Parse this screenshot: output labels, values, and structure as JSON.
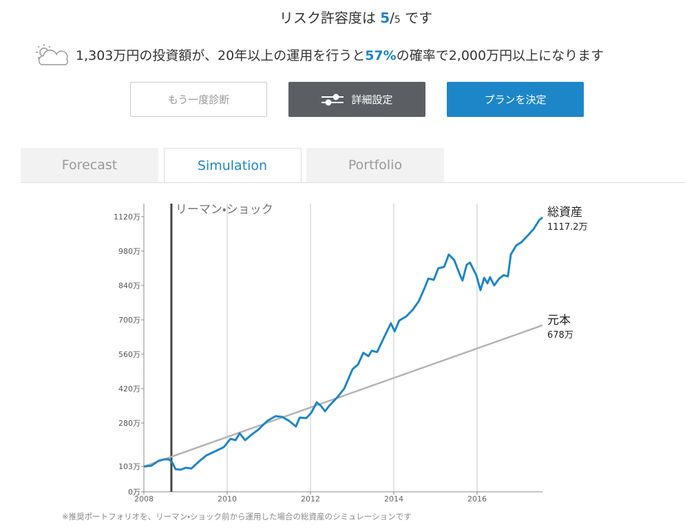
{
  "header": {
    "risk_prefix": "リスク許容度は",
    "risk_value": "5",
    "risk_separator": "/",
    "risk_max": "5",
    "risk_suffix": "です"
  },
  "forecast": {
    "prefix": "1,303万円の投資額が、20年以上の運用を行うと",
    "probability": "57%",
    "suffix": "の確率で2,000万円以上になります"
  },
  "buttons": [
    "もう一度診断",
    "詳細設定",
    "プランを決定"
  ],
  "tabs": {
    "items": [
      "Forecast",
      "Simulation",
      "Portfolio"
    ],
    "active": 1
  },
  "chart_data": {
    "type": "line",
    "grid": true,
    "xlim": [
      2008,
      2017.57
    ],
    "xticks": [
      2008,
      2010,
      2012,
      2014,
      2016
    ],
    "ylim": [
      0,
      1120
    ],
    "yticks": [
      {
        "value": 0,
        "label": "0万"
      },
      {
        "value": 103,
        "label": "103万"
      },
      {
        "value": 280,
        "label": "280万"
      },
      {
        "value": 420,
        "label": "420万"
      },
      {
        "value": 560,
        "label": "560万"
      },
      {
        "value": 700,
        "label": "700万"
      },
      {
        "value": 840,
        "label": "840万"
      },
      {
        "value": 980,
        "label": "980万"
      },
      {
        "value": 1120,
        "label": "1120万"
      }
    ],
    "annotations": [
      {
        "text": "リーマン・ショック",
        "x": 2008.66,
        "color": "#444444"
      }
    ],
    "series": [
      {
        "name": "総資産",
        "color": "#1d86c8",
        "x": [
          2008.0,
          2008.18,
          2008.35,
          2008.48,
          2008.6,
          2008.68,
          2008.76,
          2008.88,
          2009.01,
          2009.14,
          2009.34,
          2009.5,
          2009.75,
          2009.92,
          2010.08,
          2010.2,
          2010.3,
          2010.43,
          2010.58,
          2010.74,
          2010.96,
          2011.16,
          2011.32,
          2011.49,
          2011.65,
          2011.74,
          2011.9,
          2012.02,
          2012.15,
          2012.25,
          2012.35,
          2012.45,
          2012.64,
          2012.81,
          2013.01,
          2013.14,
          2013.27,
          2013.39,
          2013.47,
          2013.6,
          2013.77,
          2013.93,
          2014.02,
          2014.13,
          2014.3,
          2014.46,
          2014.6,
          2014.73,
          2014.83,
          2014.96,
          2015.07,
          2015.21,
          2015.32,
          2015.45,
          2015.59,
          2015.65,
          2015.75,
          2015.83,
          2015.98,
          2016.08,
          2016.17,
          2016.25,
          2016.31,
          2016.41,
          2016.53,
          2016.64,
          2016.74,
          2016.81,
          2016.94,
          2017.07,
          2017.21,
          2017.36,
          2017.49,
          2017.57
        ],
        "values": [
          103,
          106,
          126,
          132,
          132,
          120,
          92,
          90,
          98,
          95,
          126,
          148,
          168,
          182,
          216,
          210,
          238,
          210,
          232,
          252,
          288,
          308,
          305,
          288,
          266,
          302,
          300,
          322,
          364,
          350,
          328,
          350,
          384,
          420,
          499,
          518,
          566,
          552,
          574,
          569,
          630,
          686,
          653,
          697,
          714,
          742,
          776,
          826,
          868,
          863,
          910,
          916,
          966,
          944,
          882,
          860,
          924,
          933,
          882,
          821,
          871,
          849,
          874,
          840,
          868,
          882,
          877,
          966,
          1003,
          1017,
          1042,
          1070,
          1106,
          1117.2
        ],
        "value_labels": [
          null,
          null,
          null,
          null,
          null,
          null,
          null,
          null,
          null,
          null,
          null,
          null,
          null,
          null,
          null,
          null,
          null,
          null,
          null,
          null,
          null,
          null,
          null,
          null,
          null,
          null,
          null,
          null,
          null,
          null,
          null,
          null,
          null,
          null,
          null,
          null,
          null,
          null,
          null,
          null,
          null,
          null,
          null,
          null,
          null,
          null,
          null,
          null,
          null,
          null,
          null,
          null,
          null,
          null,
          null,
          null,
          null,
          null,
          null,
          null,
          null,
          null,
          null,
          null,
          null,
          null,
          null,
          null,
          null,
          null,
          null,
          null,
          null,
          "1117.2万"
        ]
      },
      {
        "name": "元本",
        "color": "#b3b3b3",
        "x": [
          2008,
          2017.57
        ],
        "values": [
          103,
          678
        ],
        "value_labels": [
          null,
          "678万"
        ]
      }
    ],
    "footnote": "※推奨ポートフォリオを、リーマン・ショック前から運用した場合の総資産のシミュレーションです"
  }
}
